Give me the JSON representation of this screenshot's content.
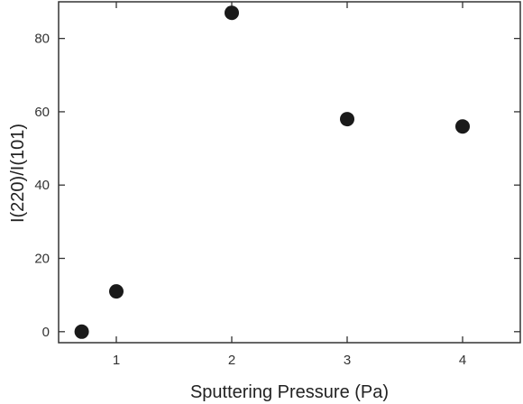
{
  "chart_data": {
    "type": "scatter",
    "title": "",
    "xlabel": "Sputtering Pressure (Pa)",
    "ylabel": "I(220)/I(101)",
    "xlim": [
      0.5,
      4.5
    ],
    "ylim": [
      -3,
      90
    ],
    "grid": false,
    "legend": "none",
    "x_ticks": [
      1,
      2,
      3,
      4
    ],
    "y_ticks": [
      0,
      20,
      40,
      60,
      80
    ],
    "series": [
      {
        "x": [
          0.7,
          1.0,
          2.0,
          3.0,
          4.0
        ],
        "y": [
          0,
          11,
          87,
          58,
          56
        ]
      }
    ],
    "marker_color": "#1a1a1a"
  }
}
